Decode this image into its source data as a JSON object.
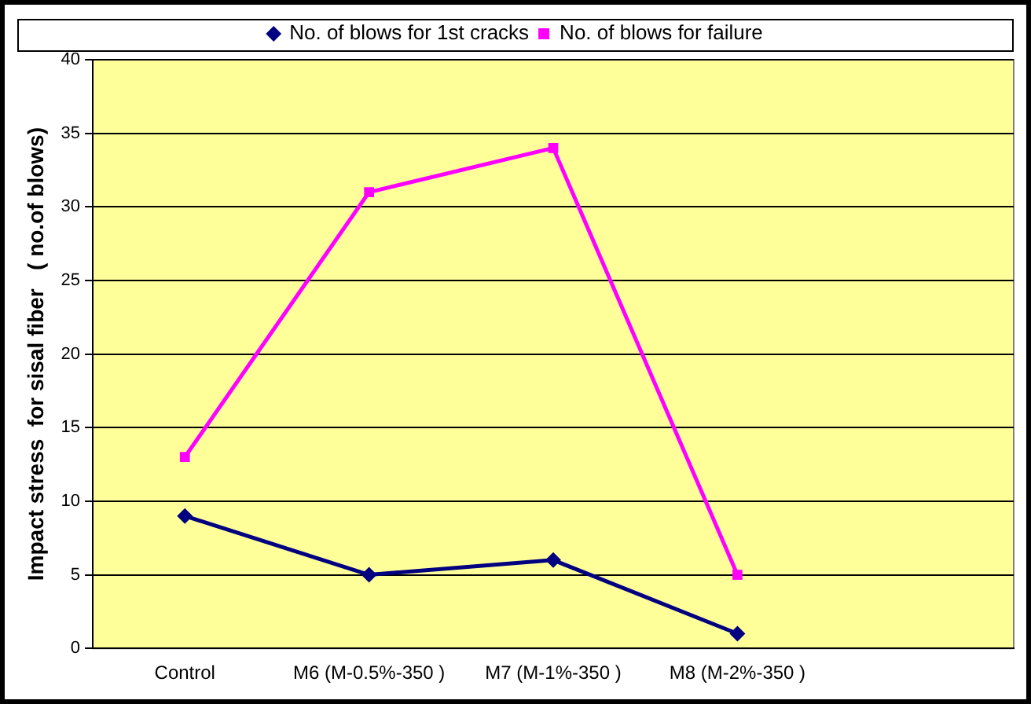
{
  "chart_data": {
    "type": "line",
    "ylabel": "Impact stress  for sisal fiber   ( no.of blows)",
    "categories": [
      "Control",
      "M6 (M-0.5%-350 )",
      "M7 (M-1%-350 )",
      "M8 (M-2%-350 )",
      null
    ],
    "series": [
      {
        "name": "No. of blows for 1st cracks",
        "color": "#000080",
        "marker": "diamond",
        "values": [
          9,
          5,
          6,
          1,
          null
        ]
      },
      {
        "name": "No. of blows for failure",
        "color": "#ff00ff",
        "marker": "square",
        "values": [
          13,
          31,
          34,
          5,
          null
        ]
      }
    ],
    "ylim": [
      0,
      40
    ],
    "yticks": [
      0,
      5,
      10,
      15,
      20,
      25,
      30,
      35,
      40
    ],
    "grid": "y",
    "legend": "top",
    "line_style": "solid"
  }
}
